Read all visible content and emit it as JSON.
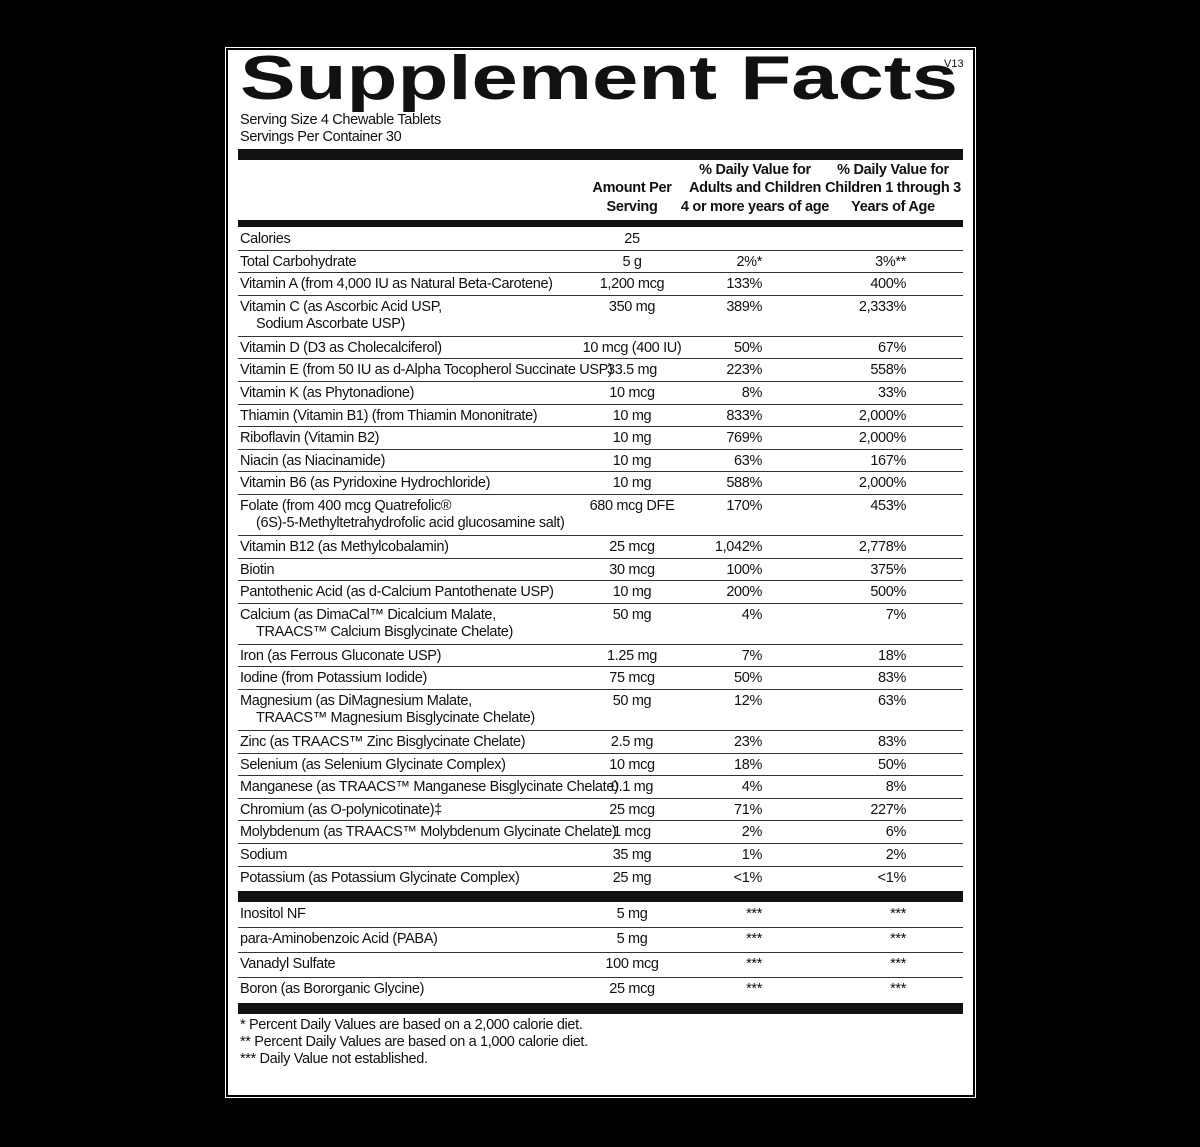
{
  "header": {
    "title": "Supplement Facts",
    "version": "V13",
    "serving_size": "Serving Size 4 Chewable Tablets",
    "servings_per_container": "Servings Per Container 30"
  },
  "table": {
    "columns": [
      [
        "Amount Per",
        "Serving"
      ],
      [
        "% Daily Value for",
        "Adults and Children",
        "4 or more years of age"
      ],
      [
        "% Daily Value for",
        "Children 1 through 3",
        "Years of Age"
      ]
    ],
    "rows": [
      {
        "name": [
          "Calories"
        ],
        "amount": "25"
      },
      {
        "name": [
          "Total Carbohydrate"
        ],
        "amount": "5 g",
        "adults": "2%*",
        "children": "3%**"
      },
      {
        "name": [
          "Vitamin A (from 4,000 IU as Natural Beta-Carotene)"
        ],
        "amount": "1,200 mcg",
        "adults": "133%",
        "children": "400%"
      },
      {
        "name": [
          "Vitamin C (as Ascorbic Acid USP,",
          "Sodium Ascorbate USP)"
        ],
        "amount": "350 mg",
        "adults": "389%",
        "children": "2,333%"
      },
      {
        "name": [
          "Vitamin D (D3 as Cholecalciferol)"
        ],
        "amount": "10 mcg (400 IU)",
        "adults": "50%",
        "children": "67%"
      },
      {
        "name": [
          "Vitamin E (from 50 IU as d-Alpha Tocopherol Succinate USP)"
        ],
        "amount": "33.5 mg",
        "adults": "223%",
        "children": "558%"
      },
      {
        "name": [
          "Vitamin K (as Phytonadione)"
        ],
        "amount": "10 mcg",
        "adults": "8%",
        "children": "33%"
      },
      {
        "name": [
          "Thiamin (Vitamin B1) (from Thiamin Mononitrate)"
        ],
        "amount": "10 mg",
        "adults": "833%",
        "children": "2,000%"
      },
      {
        "name": [
          "Riboflavin (Vitamin B2)"
        ],
        "amount": "10 mg",
        "adults": "769%",
        "children": "2,000%"
      },
      {
        "name": [
          "Niacin (as Niacinamide)"
        ],
        "amount": "10 mg",
        "adults": "63%",
        "children": "167%"
      },
      {
        "name": [
          "Vitamin B6 (as Pyridoxine Hydrochloride)"
        ],
        "amount": "10 mg",
        "adults": "588%",
        "children": "2,000%"
      },
      {
        "name": [
          "Folate (from 400 mcg Quatrefolic®",
          "(6S)-5-Methyltetrahydrofolic acid glucosamine salt)"
        ],
        "amount": "680 mcg DFE",
        "adults": "170%",
        "children": "453%"
      },
      {
        "name": [
          "Vitamin B12 (as Methylcobalamin)"
        ],
        "amount": "25 mcg",
        "adults": "1,042%",
        "children": "2,778%"
      },
      {
        "name": [
          "Biotin"
        ],
        "amount": "30 mcg",
        "adults": "100%",
        "children": "375%"
      },
      {
        "name": [
          "Pantothenic Acid (as d-Calcium Pantothenate USP)"
        ],
        "amount": "10 mg",
        "adults": "200%",
        "children": "500%"
      },
      {
        "name": [
          "Calcium (as DimaCal™ Dicalcium Malate,",
          "TRAACS™ Calcium Bisglycinate Chelate)"
        ],
        "amount": "50 mg",
        "adults": "4%",
        "children": "7%"
      },
      {
        "name": [
          "Iron (as Ferrous Gluconate USP)"
        ],
        "amount": "1.25 mg",
        "adults": "7%",
        "children": "18%"
      },
      {
        "name": [
          "Iodine (from Potassium Iodide)"
        ],
        "amount": "75 mcg",
        "adults": "50%",
        "children": "83%"
      },
      {
        "name": [
          "Magnesium (as DiMagnesium Malate,",
          "TRAACS™ Magnesium Bisglycinate Chelate)"
        ],
        "amount": "50 mg",
        "adults": "12%",
        "children": "63%"
      },
      {
        "name": [
          "Zinc (as TRAACS™ Zinc Bisglycinate Chelate)"
        ],
        "amount": "2.5 mg",
        "adults": "23%",
        "children": "83%"
      },
      {
        "name": [
          "Selenium (as Selenium Glycinate Complex)"
        ],
        "amount": "10 mcg",
        "adults": "18%",
        "children": "50%"
      },
      {
        "name": [
          "Manganese (as TRAACS™ Manganese Bisglycinate Chelate)"
        ],
        "amount": "0.1 mg",
        "adults": "4%",
        "children": "8%"
      },
      {
        "name": [
          "Chromium (as O-polynicotinate)‡"
        ],
        "amount": "25 mcg",
        "adults": "71%",
        "children": "227%"
      },
      {
        "name": [
          "Molybdenum (as TRAACS™ Molybdenum Glycinate Chelate)"
        ],
        "amount": "1 mcg",
        "adults": "2%",
        "children": "6%"
      },
      {
        "name": [
          "Sodium"
        ],
        "amount": "35 mg",
        "adults": "1%",
        "children": "2%"
      },
      {
        "name": [
          "Potassium (as Potassium Glycinate Complex)"
        ],
        "amount": "25 mg",
        "adults": "<1%",
        "children": "<1%"
      }
    ],
    "other_rows": [
      {
        "name": [
          "Inositol NF"
        ],
        "amount": "5 mg",
        "adults": "***",
        "children": "***"
      },
      {
        "name": [
          "para-Aminobenzoic Acid (PABA)"
        ],
        "amount": "5 mg",
        "adults": "***",
        "children": "***"
      },
      {
        "name": [
          "Vanadyl Sulfate"
        ],
        "amount": "100 mcg",
        "adults": "***",
        "children": "***"
      },
      {
        "name": [
          "Boron (as Bororganic Glycine)"
        ],
        "amount": "25 mcg",
        "adults": "***",
        "children": "***"
      }
    ]
  },
  "footnotes": [
    "* Percent Daily Values are based on a 2,000 calorie diet.",
    "** Percent Daily Values are based on a 1,000 calorie diet.",
    "*** Daily Value not established."
  ]
}
